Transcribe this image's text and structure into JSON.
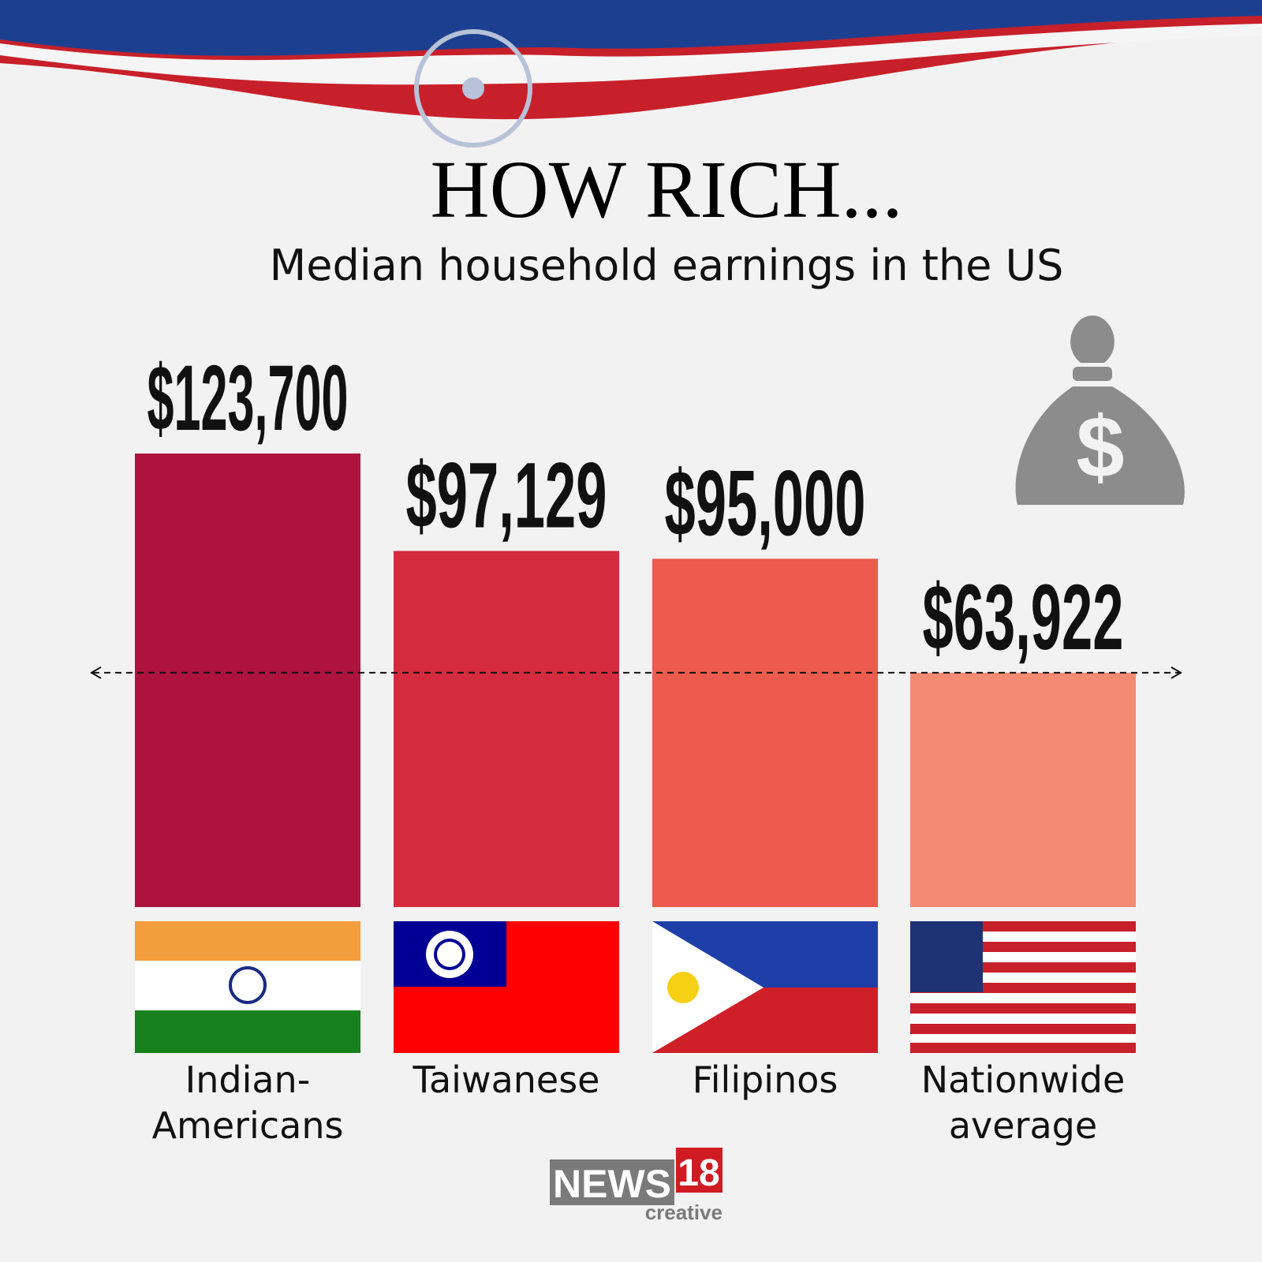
{
  "chart_data": {
    "type": "bar",
    "title": "HOW RICH...",
    "subtitle": "Median household earnings in the US",
    "categories": [
      "Indian-Americans",
      "Taiwanese",
      "Filipinos",
      "Nationwide average"
    ],
    "values": [
      123700,
      97129,
      95000,
      63922
    ],
    "value_labels": [
      "$123,700",
      "$97,129",
      "$95,000",
      "$63,922"
    ],
    "colors": [
      "#ad133d",
      "#d42b3e",
      "#ec5b4d",
      "#f58a73"
    ]
  },
  "logo": {
    "brand": "NEWS",
    "number": "18",
    "tagline": "creative"
  }
}
